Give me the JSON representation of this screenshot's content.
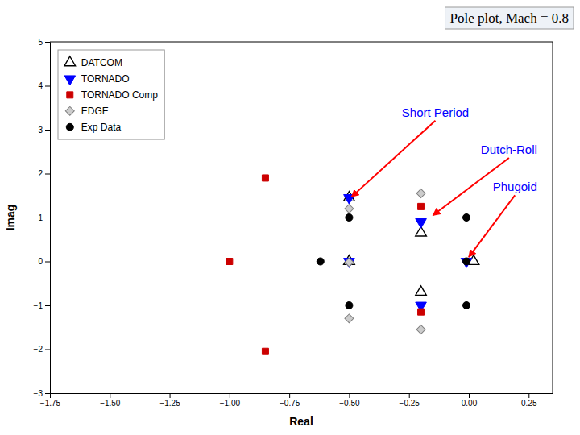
{
  "chart_data": {
    "type": "scatter",
    "title": "Pole plot, Mach = 0.8",
    "xlabel": "Real",
    "ylabel": "Imag",
    "xlim": [
      -1.75,
      0.35
    ],
    "ylim": [
      -3,
      5
    ],
    "xticks": [
      {
        "value": -1.75,
        "label": "−1.75"
      },
      {
        "value": -1.5,
        "label": "−1.50"
      },
      {
        "value": -1.25,
        "label": "−1.25"
      },
      {
        "value": -1.0,
        "label": "−1.00"
      },
      {
        "value": -0.75,
        "label": "−0.75"
      },
      {
        "value": -0.5,
        "label": "−0.50"
      },
      {
        "value": -0.25,
        "label": "−0.25"
      },
      {
        "value": 0.0,
        "label": "0.00"
      },
      {
        "value": 0.25,
        "label": "0.25"
      }
    ],
    "yticks": [
      -3,
      -2,
      -1,
      0,
      1,
      2,
      3,
      4,
      5
    ],
    "grid": false,
    "legend": "upper-left",
    "series": [
      {
        "name": "DATCOM",
        "color": "black",
        "marker": "triangle-up-open",
        "x": [
          -0.5,
          -0.5,
          -0.2,
          -0.2,
          0.02
        ],
        "values": [
          1.45,
          0.0,
          0.65,
          -0.7,
          0.0
        ]
      },
      {
        "name": "TORNADO",
        "color": "blue",
        "marker": "triangle-down",
        "x": [
          -0.5,
          -0.5,
          -0.2,
          -0.2,
          -0.01
        ],
        "values": [
          1.45,
          0.0,
          0.9,
          -1.0,
          0.0
        ]
      },
      {
        "name": "TORNADO Comp",
        "color": "#cc0000",
        "marker": "square",
        "x": [
          -0.85,
          -1.0,
          -0.85,
          -0.2,
          -0.2
        ],
        "values": [
          1.9,
          0.0,
          -2.05,
          1.25,
          -1.15
        ]
      },
      {
        "name": "EDGE",
        "color": "#cccccc",
        "marker": "diamond",
        "x": [
          -0.5,
          -0.5,
          -0.5,
          -0.2,
          -0.2
        ],
        "values": [
          1.2,
          -0.02,
          -1.3,
          1.55,
          -1.55
        ]
      },
      {
        "name": "Exp Data",
        "color": "black",
        "marker": "circle",
        "x": [
          -0.5,
          -0.62,
          -0.5,
          -0.01,
          -0.01,
          -0.01
        ],
        "values": [
          1.0,
          0.0,
          -1.0,
          1.0,
          -1.0,
          0.0
        ]
      }
    ],
    "annotations": [
      {
        "text": "Short Period",
        "xy": [
          -0.49,
          1.47
        ],
        "xytext": [
          -0.28,
          3.3
        ],
        "color": "blue",
        "arrow_color": "red"
      },
      {
        "text": "Dutch-Roll",
        "xy": [
          -0.15,
          1.05
        ],
        "xytext": [
          0.05,
          2.45
        ],
        "color": "blue",
        "arrow_color": "red"
      },
      {
        "text": "Phugoid",
        "xy": [
          0.0,
          0.1
        ],
        "xytext": [
          0.1,
          1.6
        ],
        "color": "blue",
        "arrow_color": "red"
      }
    ]
  }
}
